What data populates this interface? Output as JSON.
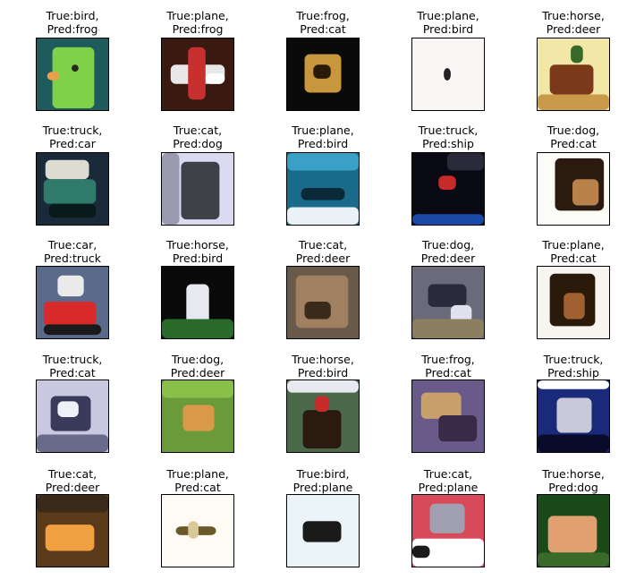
{
  "grid": {
    "rows": 5,
    "cols": 5,
    "cells": [
      {
        "true_label": "bird",
        "pred_label": "frog",
        "subject": "bird"
      },
      {
        "true_label": "plane",
        "pred_label": "frog",
        "subject": "plane"
      },
      {
        "true_label": "frog",
        "pred_label": "cat",
        "subject": "frog"
      },
      {
        "true_label": "plane",
        "pred_label": "bird",
        "subject": "plane"
      },
      {
        "true_label": "horse",
        "pred_label": "deer",
        "subject": "horse"
      },
      {
        "true_label": "truck",
        "pred_label": "car",
        "subject": "truck"
      },
      {
        "true_label": "cat",
        "pred_label": "dog",
        "subject": "cat"
      },
      {
        "true_label": "plane",
        "pred_label": "bird",
        "subject": "plane"
      },
      {
        "true_label": "truck",
        "pred_label": "ship",
        "subject": "truck"
      },
      {
        "true_label": "dog",
        "pred_label": "cat",
        "subject": "dog"
      },
      {
        "true_label": "car",
        "pred_label": "truck",
        "subject": "car"
      },
      {
        "true_label": "horse",
        "pred_label": "bird",
        "subject": "horse"
      },
      {
        "true_label": "cat",
        "pred_label": "deer",
        "subject": "cat"
      },
      {
        "true_label": "dog",
        "pred_label": "deer",
        "subject": "dog"
      },
      {
        "true_label": "plane",
        "pred_label": "cat",
        "subject": "plane"
      },
      {
        "true_label": "truck",
        "pred_label": "cat",
        "subject": "truck"
      },
      {
        "true_label": "dog",
        "pred_label": "deer",
        "subject": "dog"
      },
      {
        "true_label": "horse",
        "pred_label": "bird",
        "subject": "horse"
      },
      {
        "true_label": "frog",
        "pred_label": "cat",
        "subject": "frog"
      },
      {
        "true_label": "truck",
        "pred_label": "ship",
        "subject": "truck"
      },
      {
        "true_label": "cat",
        "pred_label": "deer",
        "subject": "cat"
      },
      {
        "true_label": "plane",
        "pred_label": "cat",
        "subject": "plane"
      },
      {
        "true_label": "bird",
        "pred_label": "plane",
        "subject": "bird"
      },
      {
        "true_label": "cat",
        "pred_label": "plane",
        "subject": "cat"
      },
      {
        "true_label": "horse",
        "pred_label": "dog",
        "subject": "horse"
      }
    ]
  }
}
